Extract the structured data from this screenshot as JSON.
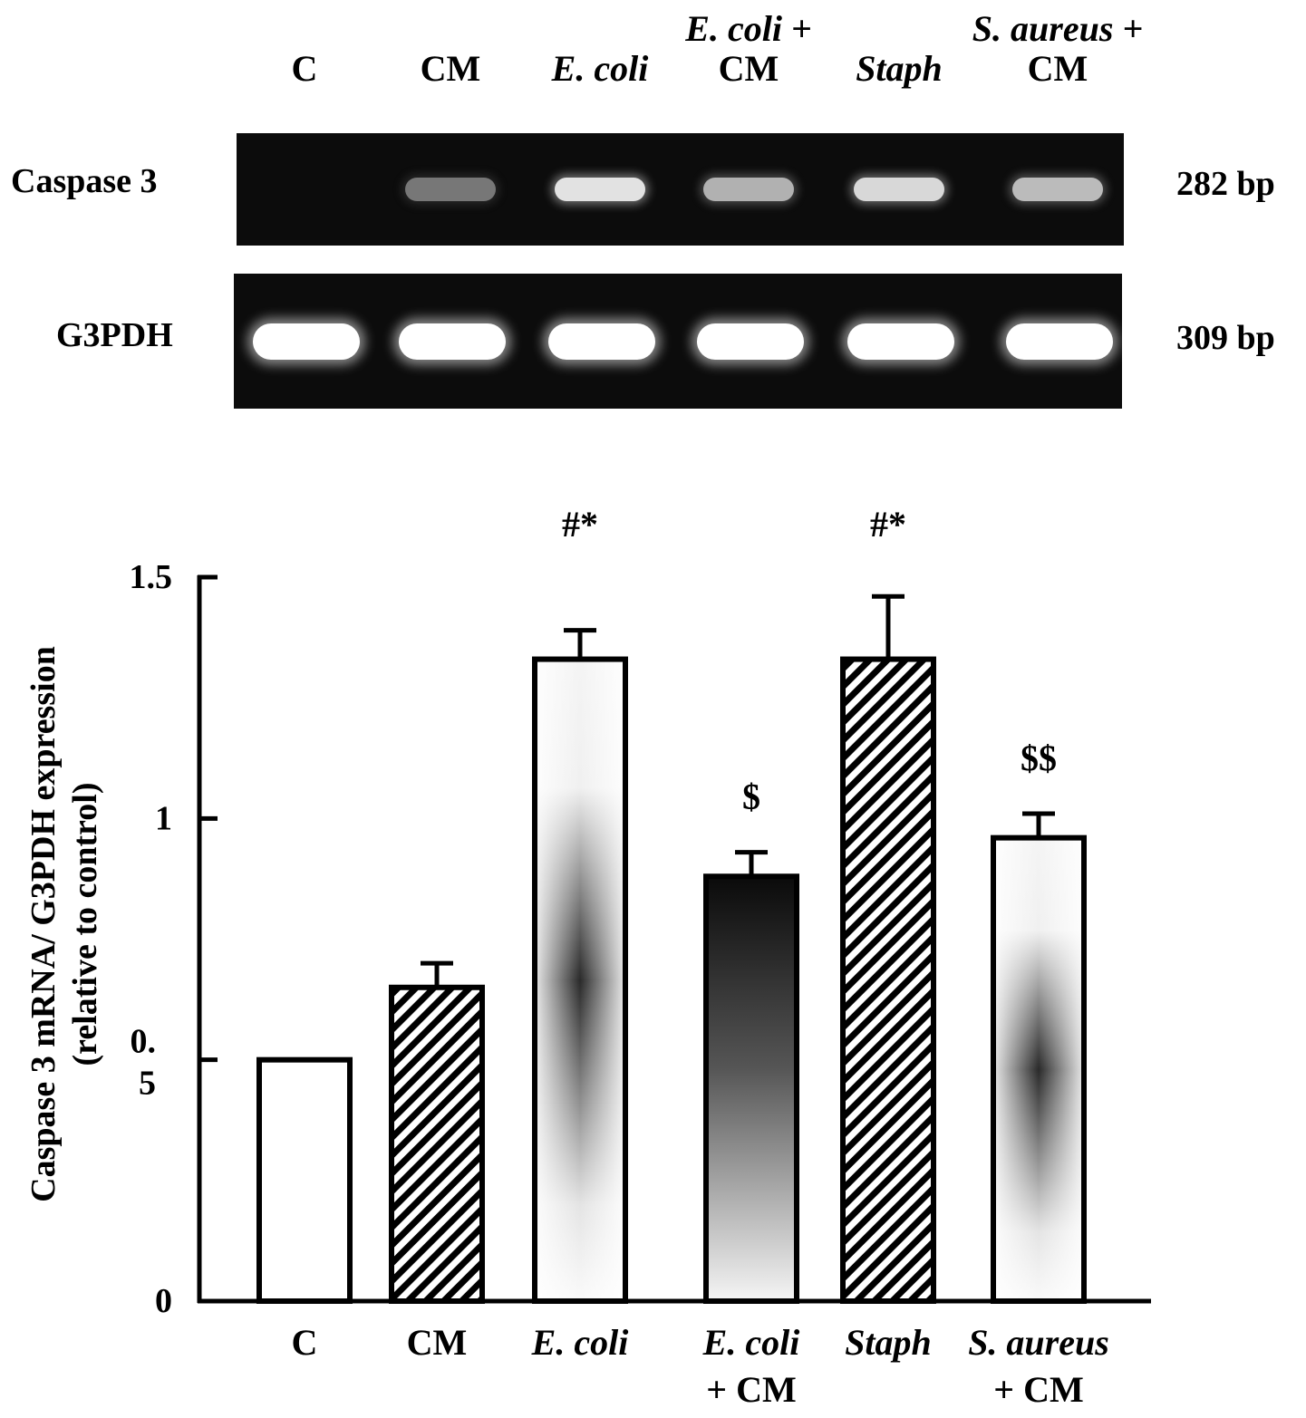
{
  "gel": {
    "lanes": [
      {
        "line1": "",
        "line2": "C",
        "italic1": false,
        "italic2": false
      },
      {
        "line1": "",
        "line2": "CM",
        "italic1": false,
        "italic2": false
      },
      {
        "line1": "",
        "line2": "E. coli",
        "italic1": false,
        "italic2": true
      },
      {
        "line1": "E. coli +",
        "line2": "CM",
        "italic1": true,
        "italic2": false
      },
      {
        "line1": "",
        "line2": "Staph",
        "italic1": false,
        "italic2": true
      },
      {
        "line1": "S. aureus +",
        "line2": "CM",
        "italic1": true,
        "italic2": false
      }
    ],
    "rows": [
      {
        "name": "Caspase 3",
        "size": "282 bp",
        "band_intensity": [
          0.0,
          0.3,
          0.85,
          0.6,
          0.8,
          0.65
        ]
      },
      {
        "name": "G3PDH",
        "size": "309 bp",
        "band_intensity": [
          1,
          1,
          1,
          1,
          1,
          1
        ]
      }
    ]
  },
  "chart_data": {
    "type": "bar",
    "ylabel_line1": "Caspase 3 mRNA/ G3PDH expression",
    "ylabel_line2": "(relative to control)",
    "ylim": [
      0,
      1.5
    ],
    "yticks": [
      {
        "value": 0,
        "label": "0"
      },
      {
        "value": 0.5,
        "label": "0.\n5"
      },
      {
        "value": 1,
        "label": "1"
      },
      {
        "value": 1.5,
        "label": "1.5"
      }
    ],
    "categories": [
      {
        "line1": "C",
        "line2": "",
        "italic": false
      },
      {
        "line1": "CM",
        "line2": "",
        "italic": false
      },
      {
        "line1": "E. coli",
        "line2": "",
        "italic": true
      },
      {
        "line1": "E. coli",
        "line2": "+ CM",
        "italic": true
      },
      {
        "line1": "Staph",
        "line2": "",
        "italic": true
      },
      {
        "line1": "S. aureus",
        "line2": "+ CM",
        "italic": true
      }
    ],
    "values": [
      0.5,
      0.65,
      1.33,
      0.88,
      1.33,
      0.96
    ],
    "errors": [
      0,
      0.05,
      0.06,
      0.05,
      0.13,
      0.05
    ],
    "patterns": [
      "white",
      "hatch",
      "gradient-light",
      "gradient-dark",
      "hatch",
      "gradient-light"
    ],
    "annotations": [
      "",
      "",
      "#*",
      "$",
      "#*",
      "$$"
    ]
  }
}
